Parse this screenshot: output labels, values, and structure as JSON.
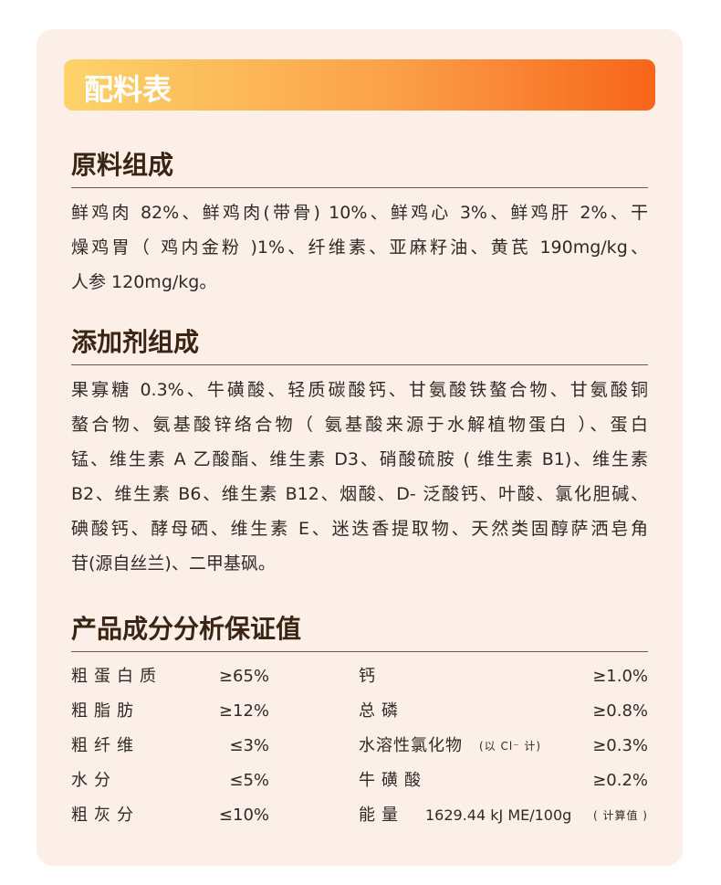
{
  "header": {
    "title": "配料表"
  },
  "sections": [
    {
      "heading": "原料组成",
      "lines": [
        "鲜鸡肉 82%、鲜鸡肉(带骨) 10%、鲜鸡心 3%、鲜鸡肝 2%、干",
        "燥鸡胃（ 鸡内金粉 )1%、纤维素、亚麻籽油、黄芪 190mg/kg、",
        "人参 120mg/kg。"
      ]
    },
    {
      "heading": "添加剂组成",
      "lines": [
        "果寡糖 0.3%、牛磺酸、轻质碳酸钙、甘氨酸铁螯合物、甘氨酸铜",
        "螯合物、氨基酸锌络合物（ 氨基酸来源于水解植物蛋白 ）、蛋白",
        "锰、维生素 A 乙酸酯、维生素 D3、硝酸硫胺 ( 维生素 B1)、维生素",
        "B2、维生素 B6、维生素 B12、烟酸、D- 泛酸钙、叶酸、氯化胆碱、",
        "碘酸钙、酵母硒、维生素 E、迷迭香提取物、天然类固醇萨洒皂角",
        "苷(源自丝兰)、二甲基砜。"
      ]
    }
  ],
  "analysis": {
    "heading": "产品成分分析保证值",
    "rows": [
      [
        {
          "name": "粗蛋白质",
          "value": "≥65%"
        },
        {
          "name": "钙",
          "value": "≥1.0%"
        }
      ],
      [
        {
          "name": "粗脂肪",
          "value": "≥12%"
        },
        {
          "name": "总磷",
          "value": "≥0.8%"
        }
      ],
      [
        {
          "name": "粗纤维",
          "value": "≤3%"
        },
        {
          "name": "水溶性氯化物",
          "note": "(以 Cl⁻ 计)",
          "value": "≥0.3%"
        }
      ],
      [
        {
          "name": "水分",
          "value": "≤5%"
        },
        {
          "name": "牛磺酸",
          "value": "≥0.2%"
        }
      ],
      [
        {
          "name": "粗灰分",
          "value": "≤10%"
        },
        {
          "name": "能量",
          "value": "1629.44 kJ ME/100g",
          "note": "( 计算值 )"
        }
      ]
    ]
  }
}
